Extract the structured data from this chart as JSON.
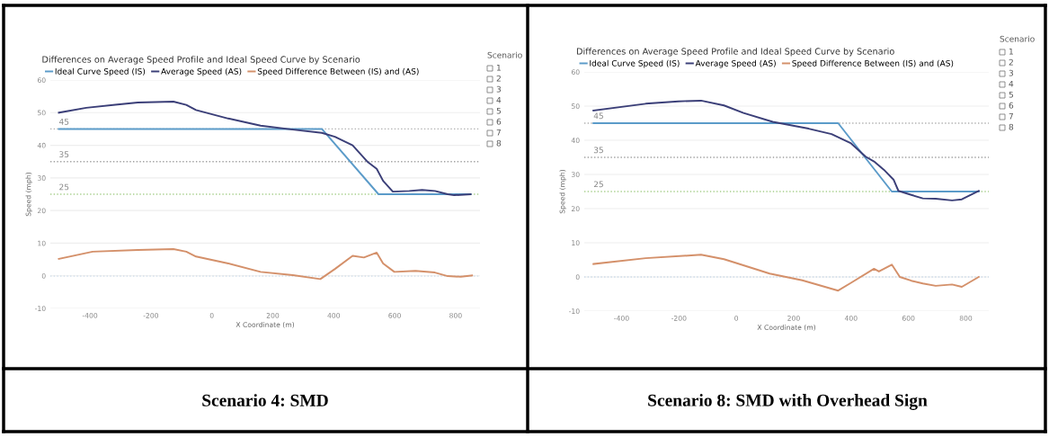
{
  "chart_data": [
    {
      "type": "line",
      "title": "Differences on Average Speed Profile and Ideal Speed Curve by Scenario",
      "xlabel": "X Coordinate (m)",
      "ylabel": "Speed (mph)",
      "xlim": [
        -530,
        880
      ],
      "xticks": [
        -400,
        -200,
        0,
        200,
        400,
        600,
        800
      ],
      "ylim": [
        -10,
        60
      ],
      "yticks": [
        -10,
        0,
        10,
        20,
        30,
        40,
        50,
        60
      ],
      "grid": "y",
      "legend": "top left",
      "marker": "none",
      "line_style": "solid",
      "series": [
        {
          "name": "Ideal Curve Speed (IS)",
          "color": "#5b9bc9",
          "x": [
            -502,
            361,
            547,
            849
          ],
          "values": [
            45,
            45,
            25,
            25
          ]
        },
        {
          "name": "Average Speed (AS)",
          "color": "#3b3f78",
          "x": [
            -502,
            -412,
            -317,
            -243,
            -126,
            -84,
            -52,
            54,
            160,
            266,
            361,
            404,
            462,
            510,
            541,
            562,
            594,
            648,
            690,
            732,
            774,
            795,
            849
          ],
          "values": [
            50,
            51.5,
            52.4,
            53.1,
            53.4,
            52.4,
            50.8,
            48.2,
            46,
            44.8,
            43.8,
            42.6,
            40,
            35,
            32.8,
            29.1,
            25.8,
            26,
            26.3,
            26,
            25,
            24.7,
            25
          ]
        },
        {
          "name": "Speed Difference Between (IS) and (AS)",
          "color": "#d4906a",
          "x": [
            -502,
            -391,
            -243,
            -126,
            -84,
            -52,
            54,
            160,
            266,
            356,
            404,
            462,
            499,
            541,
            562,
            599,
            668,
            732,
            774,
            817,
            854
          ],
          "values": [
            5.2,
            7.4,
            7.9,
            8.2,
            7.4,
            5.9,
            3.8,
            1.2,
            0.2,
            -1.0,
            2.1,
            6.1,
            5.6,
            7.1,
            3.8,
            1.2,
            1.5,
            1.0,
            -0.1,
            -0.3,
            0.1
          ]
        }
      ],
      "ref_lines": [
        {
          "axis": "y",
          "value": 45,
          "label": "45",
          "color": "#b0b0b0",
          "line_style": "dotted"
        },
        {
          "axis": "y",
          "value": 35,
          "label": "35",
          "color": "#a0a0a0",
          "line_style": "dotted"
        },
        {
          "axis": "y",
          "value": 25,
          "label": "25",
          "color": "#a8d08d",
          "line_style": "dotted"
        },
        {
          "axis": "y",
          "value": 0,
          "color": "#a9c7e3",
          "line_style": "dotted"
        }
      ],
      "annotations": [
        "Scenario 4: SMD",
        "Scenario",
        "1",
        "2",
        "3",
        "4",
        "5",
        "6",
        "7",
        "8"
      ]
    },
    {
      "type": "line",
      "title": "Differences on Average Speed Profile and Ideal Speed Curve by Scenario",
      "xlabel": "X Coordinate (m)",
      "ylabel": "Speed (mph)",
      "xlim": [
        -530,
        880
      ],
      "xticks": [
        -400,
        -200,
        0,
        200,
        400,
        600,
        800
      ],
      "ylim": [
        -10,
        60
      ],
      "yticks": [
        -10,
        0,
        10,
        20,
        30,
        40,
        50,
        60
      ],
      "grid": "y",
      "legend": "top left",
      "marker": "none",
      "line_style": "solid",
      "series": [
        {
          "name": "Ideal Curve Speed (IS)",
          "color": "#5b9bc9",
          "x": [
            -498,
            355,
            542,
            845
          ],
          "values": [
            45,
            45,
            25,
            25
          ]
        },
        {
          "name": "Average Speed (AS)",
          "color": "#3b3f78",
          "x": [
            -498,
            -316,
            -202,
            -123,
            -43,
            25,
            127,
            252,
            332,
            400,
            451,
            480,
            514,
            548,
            565,
            610,
            650,
            695,
            752,
            786,
            845
          ],
          "values": [
            48.7,
            50.7,
            51.4,
            51.6,
            50.2,
            48,
            45.4,
            43.4,
            41.8,
            39.1,
            35.2,
            33.8,
            31.4,
            28.5,
            25.2,
            24,
            23,
            22.9,
            22.4,
            22.7,
            25.2
          ]
        },
        {
          "name": "Speed Difference Between (IS) and (AS)",
          "color": "#d4906a",
          "x": [
            -498,
            -316,
            -123,
            -43,
            2,
            116,
            230,
            355,
            400,
            480,
            497,
            542,
            570,
            610,
            650,
            695,
            752,
            786,
            845
          ],
          "values": [
            3.8,
            5.5,
            6.5,
            5.2,
            4,
            1,
            -1,
            -4,
            -1.7,
            2.4,
            1.6,
            3.6,
            0,
            -1.1,
            -1.9,
            -2.6,
            -2.2,
            -2.9,
            0
          ]
        }
      ],
      "ref_lines": [
        {
          "axis": "y",
          "value": 45,
          "label": "45",
          "color": "#b0b0b0",
          "line_style": "dotted"
        },
        {
          "axis": "y",
          "value": 35,
          "label": "35",
          "color": "#a0a0a0",
          "line_style": "dotted"
        },
        {
          "axis": "y",
          "value": 25,
          "label": "25",
          "color": "#a8d08d",
          "line_style": "dotted"
        },
        {
          "axis": "y",
          "value": 0,
          "color": "#a9c7e3",
          "line_style": "dotted"
        }
      ],
      "annotations": [
        "Scenario 8: SMD with Overhead Sign",
        "Scenario",
        "1",
        "2",
        "3",
        "4",
        "5",
        "6",
        "7",
        "8"
      ]
    }
  ]
}
